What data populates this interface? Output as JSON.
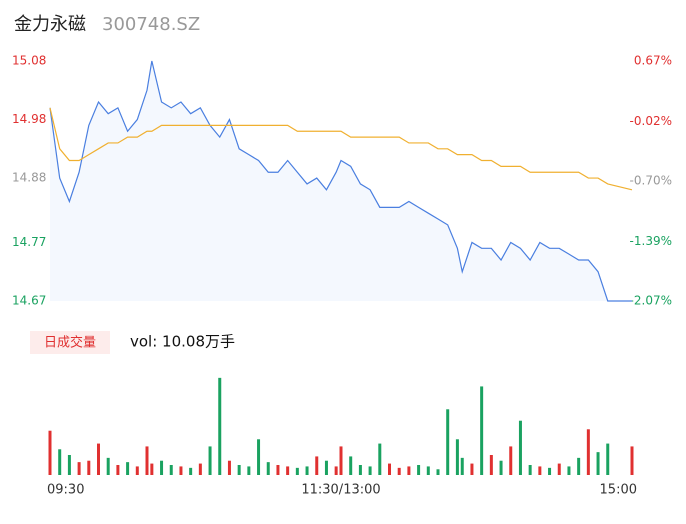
{
  "header": {
    "name": "金力永磁",
    "code": "300748.SZ"
  },
  "volume_button": "日成交量",
  "volume_text": "vol: 10.08万手",
  "chart_data": [
    {
      "type": "line",
      "xlim": [
        0,
        240
      ],
      "ylim": [
        14.67,
        15.08
      ],
      "yticks": [
        14.67,
        14.77,
        14.88,
        14.98,
        15.08
      ],
      "y2lim": [
        -2.07,
        0.67
      ],
      "y2ticks": [
        {
          "value": -2.07,
          "label": "-2.07%"
        },
        {
          "value": -1.39,
          "label": "-1.39%"
        },
        {
          "value": -0.7,
          "label": "-0.70%"
        },
        {
          "value": -0.02,
          "label": "-0.02%"
        },
        {
          "value": 0.67,
          "label": "0.67%"
        }
      ],
      "tick_colors": [
        "#1aa260",
        "#1aa260",
        "#999999",
        "#e03030",
        "#e03030"
      ],
      "x": [
        0,
        4,
        8,
        12,
        16,
        20,
        24,
        28,
        32,
        36,
        40,
        42,
        46,
        50,
        54,
        58,
        62,
        66,
        70,
        74,
        78,
        82,
        86,
        90,
        94,
        98,
        102,
        106,
        110,
        114,
        118,
        120,
        124,
        128,
        132,
        136,
        140,
        144,
        148,
        152,
        156,
        160,
        164,
        168,
        170,
        174,
        178,
        182,
        186,
        190,
        194,
        198,
        202,
        206,
        210,
        214,
        218,
        222,
        226,
        230,
        240
      ],
      "series": [
        {
          "color": "#4a7fe0",
          "fill": "#f4f8fe",
          "values": [
            15.0,
            14.88,
            14.84,
            14.89,
            14.97,
            15.01,
            14.99,
            15.0,
            14.96,
            14.98,
            15.03,
            15.08,
            15.01,
            15.0,
            15.01,
            14.99,
            15.0,
            14.97,
            14.95,
            14.98,
            14.93,
            14.92,
            14.91,
            14.89,
            14.89,
            14.91,
            14.89,
            14.87,
            14.88,
            14.86,
            14.89,
            14.91,
            14.9,
            14.87,
            14.86,
            14.83,
            14.83,
            14.83,
            14.84,
            14.83,
            14.82,
            14.81,
            14.8,
            14.76,
            14.72,
            14.77,
            14.76,
            14.76,
            14.74,
            14.77,
            14.76,
            14.74,
            14.77,
            14.76,
            14.76,
            14.75,
            14.74,
            14.74,
            14.72,
            14.67,
            14.67
          ]
        },
        {
          "color": "#f0b030",
          "values": [
            15.0,
            14.93,
            14.91,
            14.91,
            14.92,
            14.93,
            14.94,
            14.94,
            14.95,
            14.95,
            14.96,
            14.96,
            14.97,
            14.97,
            14.97,
            14.97,
            14.97,
            14.97,
            14.97,
            14.97,
            14.97,
            14.97,
            14.97,
            14.97,
            14.97,
            14.97,
            14.96,
            14.96,
            14.96,
            14.96,
            14.96,
            14.96,
            14.95,
            14.95,
            14.95,
            14.95,
            14.95,
            14.95,
            14.94,
            14.94,
            14.94,
            14.93,
            14.93,
            14.92,
            14.92,
            14.92,
            14.91,
            14.91,
            14.9,
            14.9,
            14.9,
            14.89,
            14.89,
            14.89,
            14.89,
            14.89,
            14.89,
            14.88,
            14.88,
            14.87,
            14.86
          ]
        }
      ]
    },
    {
      "type": "bar",
      "xlim": [
        0,
        240
      ],
      "ylim": [
        0,
        3500
      ],
      "up_color": "#e03030",
      "down_color": "#1aa260",
      "xticks": [
        {
          "value": 0,
          "label": "09:30"
        },
        {
          "value": 120,
          "label": "11:30/13:00"
        },
        {
          "value": 240,
          "label": "15:00"
        }
      ],
      "x": [
        0,
        4,
        8,
        12,
        16,
        20,
        24,
        28,
        32,
        36,
        40,
        42,
        46,
        50,
        54,
        58,
        62,
        66,
        70,
        74,
        78,
        82,
        86,
        90,
        94,
        98,
        102,
        106,
        110,
        114,
        118,
        120,
        124,
        128,
        132,
        136,
        140,
        144,
        148,
        152,
        156,
        160,
        164,
        168,
        170,
        174,
        178,
        182,
        186,
        190,
        194,
        198,
        202,
        206,
        210,
        214,
        218,
        222,
        226,
        230,
        240
      ],
      "values": [
        1550,
        900,
        700,
        450,
        500,
        1100,
        600,
        350,
        450,
        300,
        1000,
        400,
        500,
        350,
        300,
        250,
        400,
        1000,
        3400,
        500,
        350,
        300,
        1250,
        450,
        350,
        300,
        250,
        300,
        650,
        500,
        300,
        1000,
        650,
        350,
        300,
        1100,
        400,
        250,
        300,
        350,
        300,
        200,
        2300,
        1250,
        600,
        400,
        3100,
        700,
        500,
        1000,
        1900,
        350,
        300,
        250,
        400,
        300,
        600,
        1600,
        800,
        1100,
        1000
      ]
    }
  ]
}
